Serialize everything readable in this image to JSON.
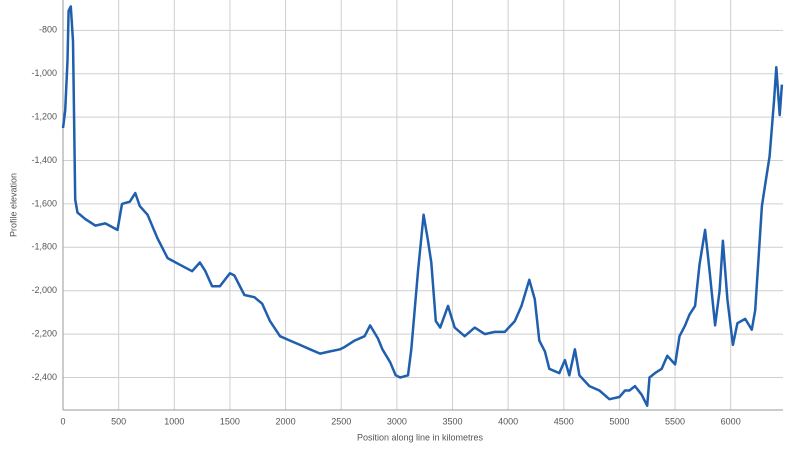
{
  "chart_data": {
    "type": "line",
    "x_label": "Position along line in kilometres",
    "y_label": "Profile elevation",
    "xlim": [
      0,
      6470
    ],
    "ylim": [
      -2550,
      -660
    ],
    "xticks": [
      0,
      500,
      1000,
      1500,
      2000,
      2500,
      3000,
      3500,
      4000,
      4500,
      5000,
      5500,
      6000
    ],
    "yticks": [
      -800,
      {
        "value": -1000,
        "label": "-1,000"
      },
      {
        "value": -1200,
        "label": "-1,200"
      },
      {
        "value": -1400,
        "label": "-1,400"
      },
      {
        "value": -1600,
        "label": "-1,600"
      },
      {
        "value": -1800,
        "label": "-1,800"
      },
      {
        "value": -2000,
        "label": "-2,000"
      },
      {
        "value": -2200,
        "label": "-2,200"
      },
      {
        "value": -2400,
        "label": "-2,400"
      }
    ],
    "grid": true,
    "series": [
      {
        "color": "#1f5fad",
        "x": [
          0,
          20,
          40,
          50,
          70,
          90,
          100,
          110,
          130,
          200,
          290,
          380,
          490,
          530,
          600,
          650,
          690,
          760,
          850,
          940,
          1050,
          1160,
          1230,
          1280,
          1340,
          1410,
          1500,
          1540,
          1630,
          1720,
          1790,
          1860,
          1950,
          2040,
          2130,
          2220,
          2310,
          2400,
          2490,
          2530,
          2620,
          2710,
          2760,
          2830,
          2870,
          2940,
          2990,
          3030,
          3100,
          3130,
          3190,
          3240,
          3280,
          3310,
          3350,
          3390,
          3460,
          3520,
          3610,
          3700,
          3790,
          3880,
          3970,
          4060,
          4120,
          4190,
          4240,
          4280,
          4330,
          4370,
          4460,
          4510,
          4550,
          4600,
          4640,
          4730,
          4820,
          4910,
          5000,
          5050,
          5090,
          5140,
          5200,
          5250,
          5270,
          5320,
          5380,
          5430,
          5500,
          5540,
          5590,
          5630,
          5680,
          5720,
          5770,
          5810,
          5860,
          5900,
          5930,
          5970,
          6020,
          6060,
          6130,
          6190,
          6220,
          6280,
          6310,
          6350,
          6390,
          6410,
          6440,
          6460
        ],
        "values": [
          -1250,
          -1170,
          -940,
          -710,
          -690,
          -850,
          -1210,
          -1580,
          -1640,
          -1670,
          -1700,
          -1690,
          -1720,
          -1600,
          -1590,
          -1550,
          -1610,
          -1650,
          -1760,
          -1850,
          -1880,
          -1910,
          -1870,
          -1910,
          -1980,
          -1980,
          -1920,
          -1930,
          -2020,
          -2030,
          -2060,
          -2140,
          -2210,
          -2230,
          -2250,
          -2270,
          -2290,
          -2280,
          -2270,
          -2260,
          -2230,
          -2210,
          -2160,
          -2220,
          -2270,
          -2330,
          -2390,
          -2400,
          -2390,
          -2270,
          -1910,
          -1650,
          -1770,
          -1870,
          -2140,
          -2170,
          -2070,
          -2170,
          -2210,
          -2170,
          -2200,
          -2190,
          -2190,
          -2140,
          -2070,
          -1950,
          -2040,
          -2230,
          -2280,
          -2360,
          -2380,
          -2320,
          -2390,
          -2270,
          -2390,
          -2440,
          -2460,
          -2500,
          -2490,
          -2460,
          -2460,
          -2440,
          -2480,
          -2530,
          -2400,
          -2380,
          -2360,
          -2300,
          -2340,
          -2210,
          -2160,
          -2110,
          -2070,
          -1880,
          -1720,
          -1910,
          -2160,
          -2000,
          -1770,
          -2040,
          -2250,
          -2150,
          -2130,
          -2180,
          -2090,
          -1610,
          -1510,
          -1380,
          -1120,
          -970,
          -1190,
          -1050
        ]
      }
    ]
  }
}
